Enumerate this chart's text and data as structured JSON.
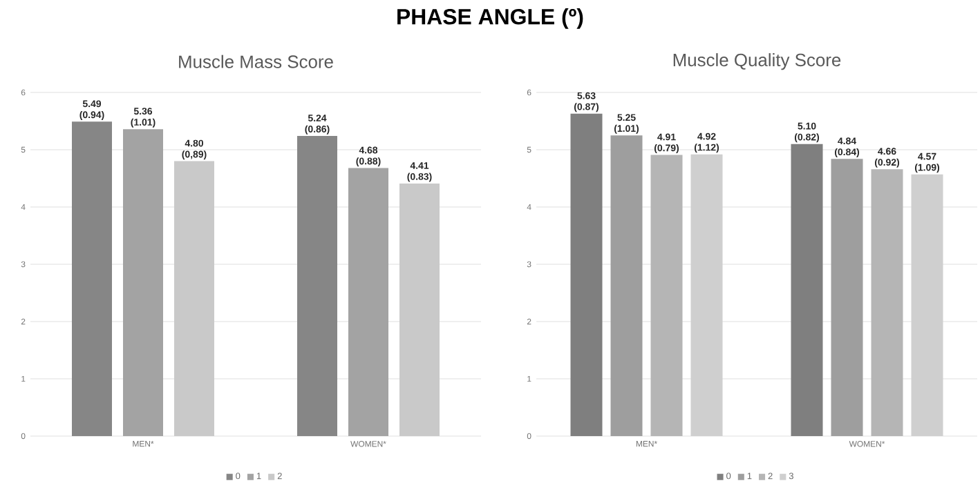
{
  "chart_data": [
    {
      "type": "bar",
      "title": "PHASE ANGLE (º)",
      "subtitle": "Muscle Mass Score",
      "categories": [
        "MEN*",
        "WOMEN*"
      ],
      "ylim": [
        0,
        6
      ],
      "yticks": [
        0,
        1,
        2,
        3,
        4,
        5,
        6
      ],
      "grid": "y",
      "legend": "bottom",
      "series": [
        {
          "name": "0",
          "color": "#868686",
          "values": [
            5.49,
            5.24
          ],
          "value_labels": [
            "5.49 (0.94)",
            "5.24 (0.86)"
          ]
        },
        {
          "name": "1",
          "color": "#a3a3a3",
          "values": [
            5.36,
            4.68
          ],
          "value_labels": [
            "5.36 (1.01)",
            "4.68 (0.88)"
          ]
        },
        {
          "name": "2",
          "color": "#c9c9c9",
          "values": [
            4.8,
            4.41
          ],
          "value_labels": [
            "4.80 (0,89)",
            "4.41 (0.83)"
          ]
        }
      ]
    },
    {
      "type": "bar",
      "title": "Muscle Quality Score",
      "categories": [
        "MEN*",
        "WOMEN*"
      ],
      "ylim": [
        0,
        6
      ],
      "yticks": [
        0,
        1,
        2,
        3,
        4,
        5,
        6
      ],
      "grid": "y",
      "legend": "bottom",
      "series": [
        {
          "name": "0",
          "color": "#7f7f7f",
          "values": [
            5.63,
            5.1
          ],
          "value_labels": [
            "5.63 (0.87)",
            "5.10 (0.82)"
          ]
        },
        {
          "name": "1",
          "color": "#9e9e9e",
          "values": [
            5.25,
            4.84
          ],
          "value_labels": [
            "5.25 (1.01)",
            "4.84 (0.84)"
          ]
        },
        {
          "name": "2",
          "color": "#b5b5b5",
          "values": [
            4.91,
            4.66
          ],
          "value_labels": [
            "4.91 (0.79)",
            "4.66 (0.92)"
          ]
        },
        {
          "name": "3",
          "color": "#cfcfcf",
          "values": [
            4.92,
            4.57
          ],
          "value_labels": [
            "4.92 (1.12)",
            "4.57 (1.09)"
          ]
        }
      ]
    }
  ]
}
